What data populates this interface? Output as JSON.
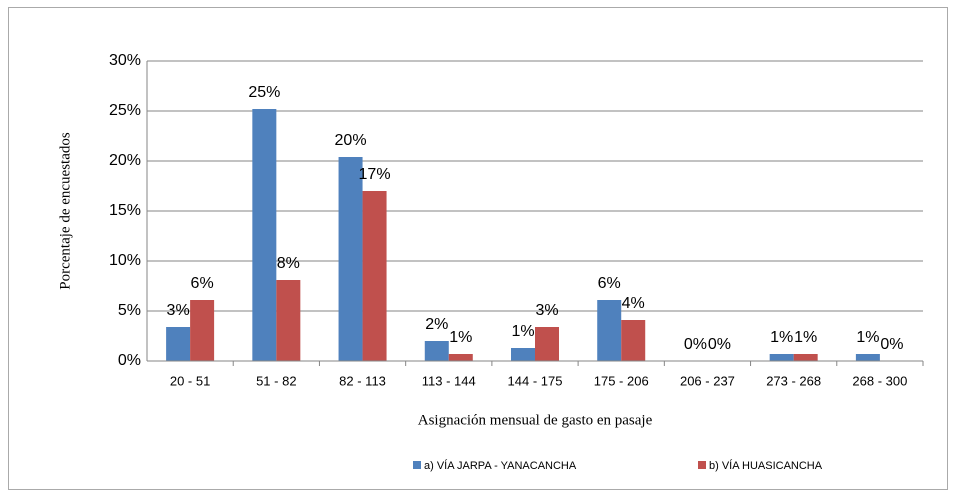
{
  "chart_data": {
    "type": "bar",
    "ylabel": "Porcentaje de encuestados",
    "xlabel": "Asignación mensual de gasto en pasaje",
    "categories": [
      "20 - 51",
      "51 - 82",
      "82 - 113",
      "113 - 144",
      "144 - 175",
      "175 - 206",
      "206 - 237",
      "273 - 268",
      "268 - 300"
    ],
    "series": [
      {
        "name": "a) VÍA JARPA - YANACANCHA",
        "color": "#4f81bd",
        "values": [
          3.4,
          25.2,
          20.4,
          2.0,
          1.3,
          6.1,
          0,
          0.7,
          0.7
        ],
        "value_labels": [
          "3%",
          "25%",
          "20%",
          "2%",
          "1%",
          "6%",
          "0%",
          "1%",
          "1%"
        ]
      },
      {
        "name": "b) VÍA HUASICANCHA",
        "color": "#c0504d",
        "values": [
          6.1,
          8.1,
          17.0,
          0.7,
          3.4,
          4.1,
          0,
          0.7,
          0
        ],
        "value_labels": [
          "6%",
          "8%",
          "17%",
          "1%",
          "3%",
          "4%",
          "0%",
          "1%",
          "0%"
        ]
      }
    ],
    "ylim": [
      0,
      30
    ],
    "yticks": [
      {
        "value": 0,
        "label": "0%"
      },
      {
        "value": 5,
        "label": "5%"
      },
      {
        "value": 10,
        "label": "10%"
      },
      {
        "value": 15,
        "label": "15%"
      },
      {
        "value": 20,
        "label": "20%"
      },
      {
        "value": 25,
        "label": "25%"
      },
      {
        "value": 30,
        "label": "30%"
      }
    ],
    "grid": true,
    "legend": "bottom"
  }
}
